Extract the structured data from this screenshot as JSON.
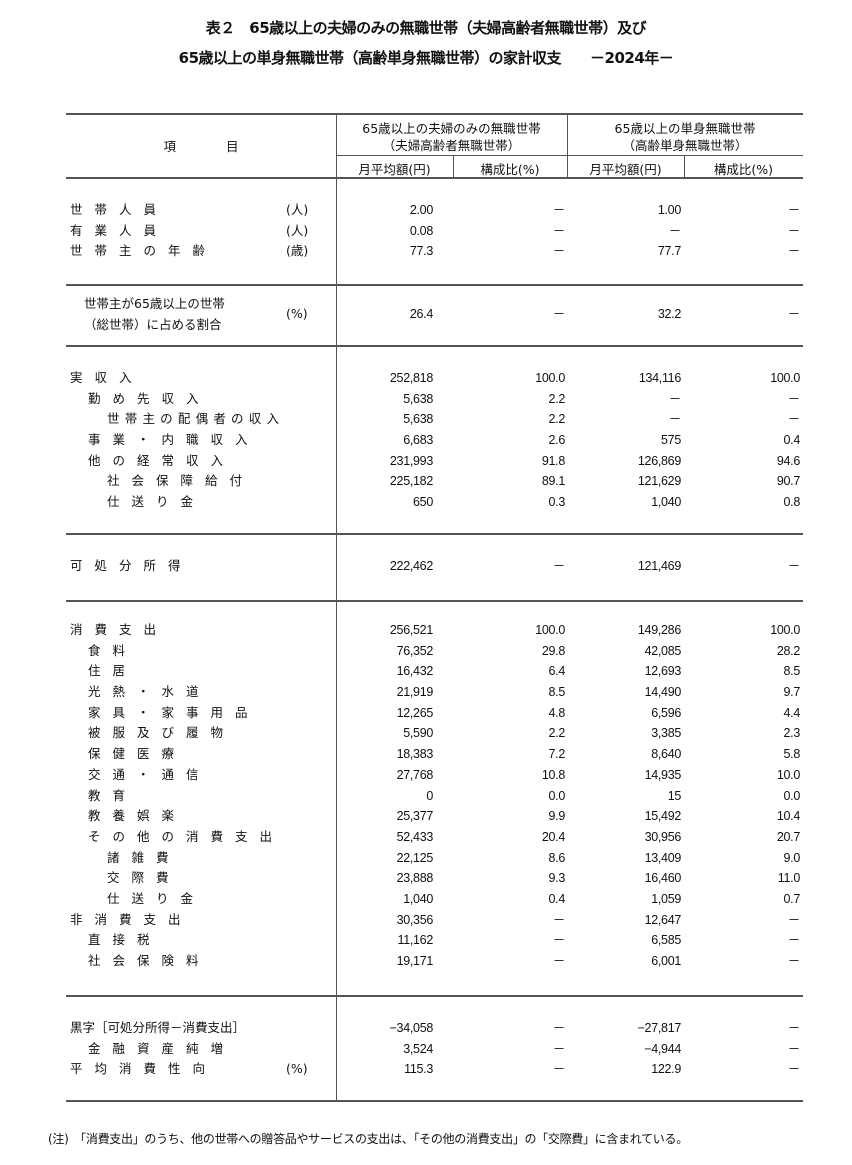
{
  "title_line1": "表２　65歳以上の夫婦のみの無職世帯（夫婦高齢者無職世帯）及び",
  "title_line2": "65歳以上の単身無職世帯（高齢単身無職世帯）の家計収支　　－2024年－",
  "header": {
    "item": "項　　　　目",
    "group1_line1": "65歳以上の夫婦のみの無職世帯",
    "group1_line2": "（夫婦高齢者無職世帯）",
    "group2_line1": "65歳以上の単身無職世帯",
    "group2_line2": "（高齢単身無職世帯）",
    "col_amount": "月平均額(円)",
    "col_ratio": "構成比(%)"
  },
  "sections": [
    {
      "rows": [
        {
          "label": "世帯人員",
          "suffix": "(人)",
          "indent": 0,
          "v": [
            "2.00",
            "－",
            "1.00",
            "－"
          ]
        },
        {
          "label": "有業人員",
          "suffix": "(人)",
          "indent": 0,
          "v": [
            "0.08",
            "－",
            "－",
            "－"
          ]
        },
        {
          "label": "世帯主の年齢",
          "suffix": "(歳)",
          "indent": 0,
          "v": [
            "77.3",
            "－",
            "77.7",
            "－"
          ]
        }
      ]
    },
    {
      "multiline": true,
      "label_line1": "世帯主が65歳以上の世帯",
      "label_line2": "（総世帯）に占める割合",
      "suffix": "(%)",
      "v": [
        "26.4",
        "－",
        "32.2",
        "－"
      ]
    },
    {
      "rows": [
        {
          "label": "実収入",
          "indent": 0,
          "v": [
            "252,818",
            "100.0",
            "134,116",
            "100.0"
          ]
        },
        {
          "label": "勤め先収入",
          "indent": 1,
          "v": [
            "5,638",
            "2.2",
            "－",
            "－"
          ]
        },
        {
          "label": "世帯主の配偶者の収入",
          "indent": 2,
          "v": [
            "5,638",
            "2.2",
            "－",
            "－"
          ]
        },
        {
          "label": "事業・内職収入",
          "indent": 1,
          "v": [
            "6,683",
            "2.6",
            "575",
            "0.4"
          ]
        },
        {
          "label": "他の経常収入",
          "indent": 1,
          "v": [
            "231,993",
            "91.8",
            "126,869",
            "94.6"
          ]
        },
        {
          "label": "社会保障給付",
          "indent": 2,
          "v": [
            "225,182",
            "89.1",
            "121,629",
            "90.7"
          ]
        },
        {
          "label": "仕送り金",
          "indent": 2,
          "v": [
            "650",
            "0.3",
            "1,040",
            "0.8"
          ]
        }
      ]
    },
    {
      "rows": [
        {
          "label": "可処分所得",
          "indent": 0,
          "v": [
            "222,462",
            "－",
            "121,469",
            "－"
          ]
        }
      ]
    },
    {
      "rows": [
        {
          "label": "消費支出",
          "indent": 0,
          "v": [
            "256,521",
            "100.0",
            "149,286",
            "100.0"
          ]
        },
        {
          "label": "食料",
          "indent": 1,
          "v": [
            "76,352",
            "29.8",
            "42,085",
            "28.2"
          ]
        },
        {
          "label": "住居",
          "indent": 1,
          "v": [
            "16,432",
            "6.4",
            "12,693",
            "8.5"
          ]
        },
        {
          "label": "光熱・水道",
          "indent": 1,
          "v": [
            "21,919",
            "8.5",
            "14,490",
            "9.7"
          ]
        },
        {
          "label": "家具・家事用品",
          "indent": 1,
          "v": [
            "12,265",
            "4.8",
            "6,596",
            "4.4"
          ]
        },
        {
          "label": "被服及び履物",
          "indent": 1,
          "v": [
            "5,590",
            "2.2",
            "3,385",
            "2.3"
          ]
        },
        {
          "label": "保健医療",
          "indent": 1,
          "v": [
            "18,383",
            "7.2",
            "8,640",
            "5.8"
          ]
        },
        {
          "label": "交通・通信",
          "indent": 1,
          "v": [
            "27,768",
            "10.8",
            "14,935",
            "10.0"
          ]
        },
        {
          "label": "教育",
          "indent": 1,
          "v": [
            "0",
            "0.0",
            "15",
            "0.0"
          ]
        },
        {
          "label": "教養娯楽",
          "indent": 1,
          "v": [
            "25,377",
            "9.9",
            "15,492",
            "10.4"
          ]
        },
        {
          "label": "その他の消費支出",
          "indent": 1,
          "v": [
            "52,433",
            "20.4",
            "30,956",
            "20.7"
          ]
        },
        {
          "label": "諸雑費",
          "indent": 2,
          "v": [
            "22,125",
            "8.6",
            "13,409",
            "9.0"
          ]
        },
        {
          "label": "交際費",
          "indent": 2,
          "v": [
            "23,888",
            "9.3",
            "16,460",
            "11.0"
          ]
        },
        {
          "label": "仕送り金",
          "indent": 2,
          "v": [
            "1,040",
            "0.4",
            "1,059",
            "0.7"
          ]
        },
        {
          "label": "非消費支出",
          "indent": 0,
          "v": [
            "30,356",
            "－",
            "12,647",
            "－"
          ]
        },
        {
          "label": "直接税",
          "indent": 1,
          "v": [
            "11,162",
            "－",
            "6,585",
            "－"
          ]
        },
        {
          "label": "社会保険料",
          "indent": 1,
          "v": [
            "19,171",
            "－",
            "6,001",
            "－"
          ]
        }
      ]
    },
    {
      "rows": [
        {
          "label": "黒字［可処分所得－消費支出］",
          "indent": 0,
          "nodist": true,
          "v": [
            "−34,058",
            "－",
            "−27,817",
            "－"
          ]
        },
        {
          "label": "金融資産純増",
          "indent": 1,
          "v": [
            "3,524",
            "－",
            "−4,944",
            "－"
          ]
        },
        {
          "label": "平均消費性向",
          "suffix": "(%)",
          "indent": 0,
          "v": [
            "115.3",
            "－",
            "122.9",
            "－"
          ]
        }
      ]
    }
  ],
  "note": "(注)　「消費支出」のうち、他の世帯への贈答品やサービスの支出は、「その他の消費支出」の「交際費」に含まれている。"
}
